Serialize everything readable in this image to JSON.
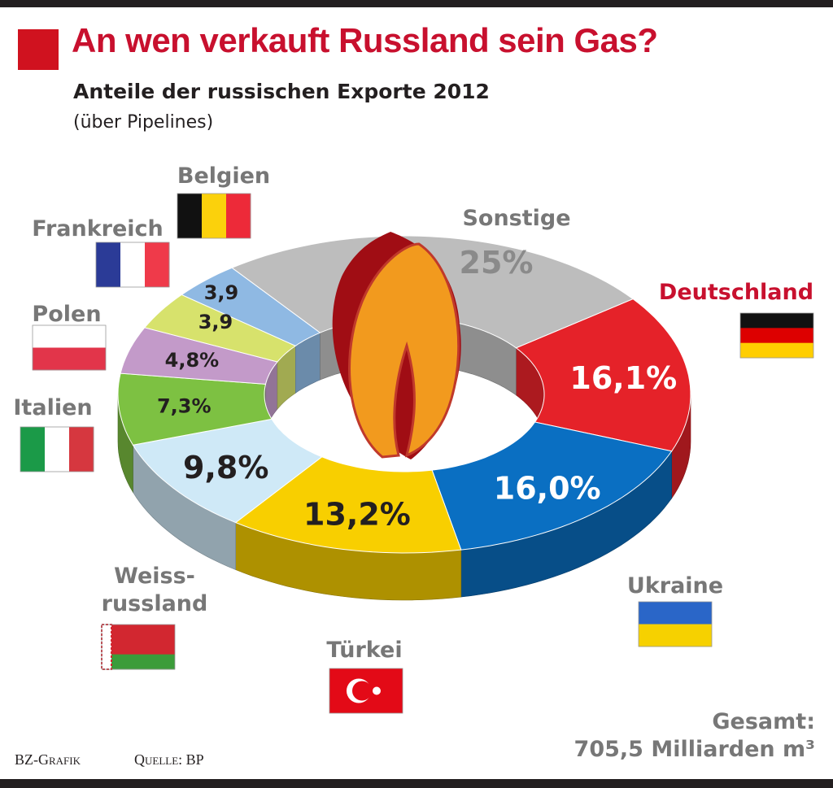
{
  "header": {
    "title": "An wen verkauft Russland sein Gas?",
    "subtitle": "Anteile der russischen Exporte 2012",
    "note": "(über Pipelines)"
  },
  "chart_data": {
    "type": "donut",
    "categories": [
      "Deutschland",
      "Ukraine",
      "Türkei",
      "Weiss-\nrussland",
      "Italien",
      "Polen",
      "Frankreich",
      "Belgien",
      "Sonstige"
    ],
    "values": [
      16.1,
      16.0,
      13.2,
      9.8,
      7.3,
      4.8,
      3.9,
      3.9,
      25
    ],
    "value_labels": [
      "16,1%",
      "16,0%",
      "13,2%",
      "9,8%",
      "7,3%",
      "4,8%",
      "3,9",
      "3,9",
      "25%"
    ],
    "colors": [
      "#e52229",
      "#0a6fc2",
      "#f8cf00",
      "#cfe9f7",
      "#7dc142",
      "#c39ac9",
      "#d7e26c",
      "#8fb9e3",
      "#bdbdbd"
    ]
  },
  "footer": {
    "credit": "BZ-Grafik",
    "source": "Quelle: BP",
    "total_label": "Gesamt:",
    "total": "705,5 Milliarden m³"
  }
}
